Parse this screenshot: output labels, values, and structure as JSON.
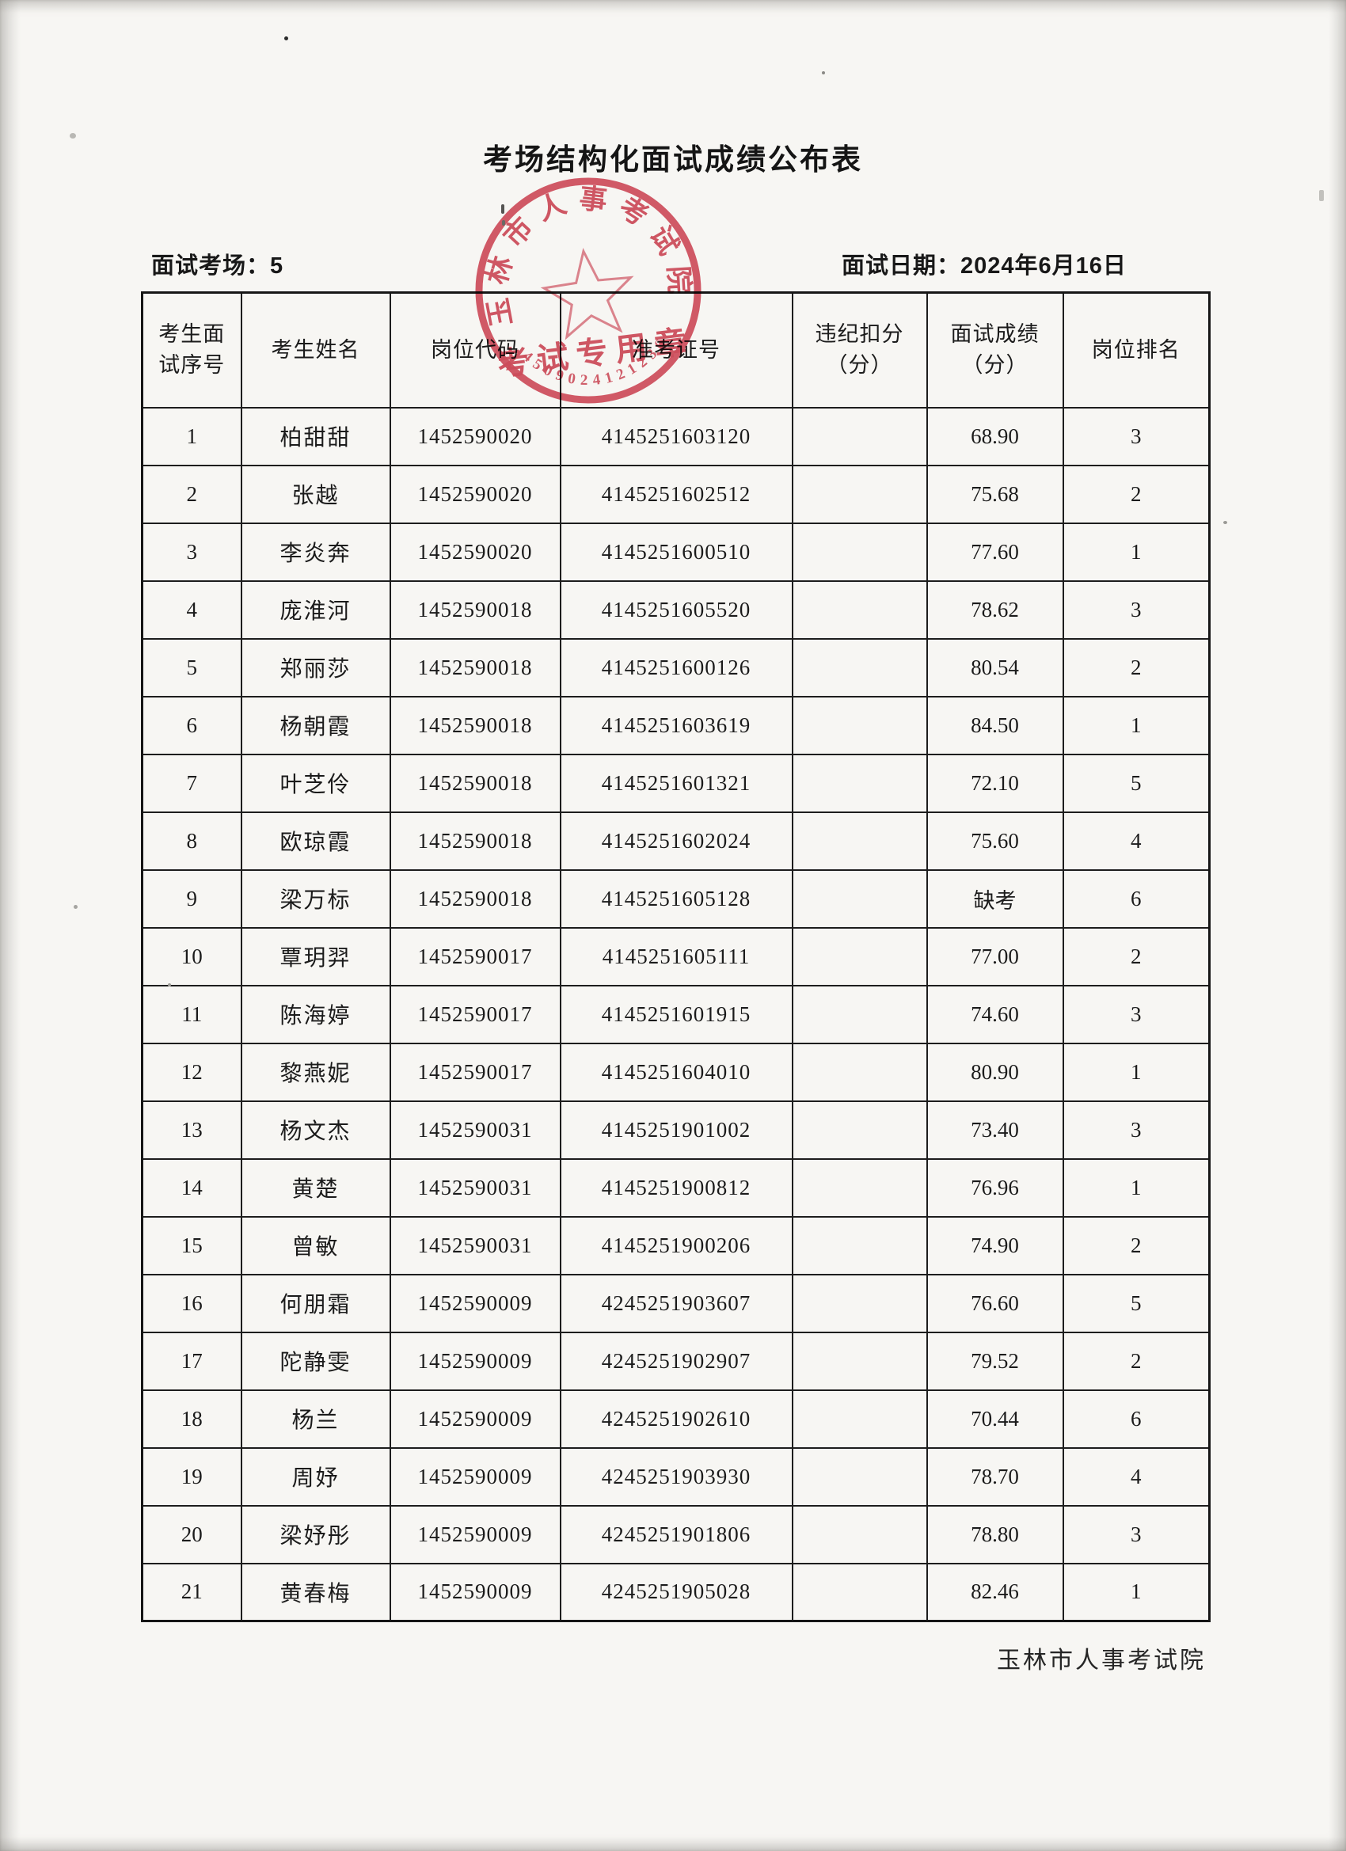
{
  "page": {
    "title": "考场结构化面试成绩公布表",
    "room_label": "面试考场：5",
    "date_label": "面试日期：2024年6月16日",
    "footer": "玉林市人事考试院"
  },
  "stamp": {
    "arc_text": "玉林市人事考试院",
    "seal_text": "考试专用章",
    "serial_number": "4509024121236",
    "color": "#cd3749"
  },
  "table": {
    "column_keys": [
      "seq",
      "name",
      "code",
      "ticket",
      "deduction",
      "score",
      "rank"
    ],
    "headers": [
      [
        "考生面",
        "试序号"
      ],
      [
        "考生姓名"
      ],
      [
        "岗位代码"
      ],
      [
        "准考证号"
      ],
      [
        "违纪扣分",
        "（分）"
      ],
      [
        "面试成绩",
        "（分）"
      ],
      [
        "岗位排名"
      ]
    ],
    "rows": [
      [
        "1",
        "柏甜甜",
        "1452590020",
        "4145251603120",
        "",
        "68.90",
        "3"
      ],
      [
        "2",
        "张越",
        "1452590020",
        "4145251602512",
        "",
        "75.68",
        "2"
      ],
      [
        "3",
        "李炎奔",
        "1452590020",
        "4145251600510",
        "",
        "77.60",
        "1"
      ],
      [
        "4",
        "庞淮河",
        "1452590018",
        "4145251605520",
        "",
        "78.62",
        "3"
      ],
      [
        "5",
        "郑丽莎",
        "1452590018",
        "4145251600126",
        "",
        "80.54",
        "2"
      ],
      [
        "6",
        "杨朝霞",
        "1452590018",
        "4145251603619",
        "",
        "84.50",
        "1"
      ],
      [
        "7",
        "叶芝伶",
        "1452590018",
        "4145251601321",
        "",
        "72.10",
        "5"
      ],
      [
        "8",
        "欧琼霞",
        "1452590018",
        "4145251602024",
        "",
        "75.60",
        "4"
      ],
      [
        "9",
        "梁万标",
        "1452590018",
        "4145251605128",
        "",
        "缺考",
        "6"
      ],
      [
        "10",
        "覃玥羿",
        "1452590017",
        "4145251605111",
        "",
        "77.00",
        "2"
      ],
      [
        "11",
        "陈海婷",
        "1452590017",
        "4145251601915",
        "",
        "74.60",
        "3"
      ],
      [
        "12",
        "黎燕妮",
        "1452590017",
        "4145251604010",
        "",
        "80.90",
        "1"
      ],
      [
        "13",
        "杨文杰",
        "1452590031",
        "4145251901002",
        "",
        "73.40",
        "3"
      ],
      [
        "14",
        "黄楚",
        "1452590031",
        "4145251900812",
        "",
        "76.96",
        "1"
      ],
      [
        "15",
        "曾敏",
        "1452590031",
        "4145251900206",
        "",
        "74.90",
        "2"
      ],
      [
        "16",
        "何朋霜",
        "1452590009",
        "4245251903607",
        "",
        "76.60",
        "5"
      ],
      [
        "17",
        "陀静雯",
        "1452590009",
        "4245251902907",
        "",
        "79.52",
        "2"
      ],
      [
        "18",
        "杨兰",
        "1452590009",
        "4245251902610",
        "",
        "70.44",
        "6"
      ],
      [
        "19",
        "周妤",
        "1452590009",
        "4245251903930",
        "",
        "78.70",
        "4"
      ],
      [
        "20",
        "梁妤彤",
        "1452590009",
        "4245251901806",
        "",
        "78.80",
        "3"
      ],
      [
        "21",
        "黄春梅",
        "1452590009",
        "4245251905028",
        "",
        "82.46",
        "1"
      ]
    ]
  }
}
